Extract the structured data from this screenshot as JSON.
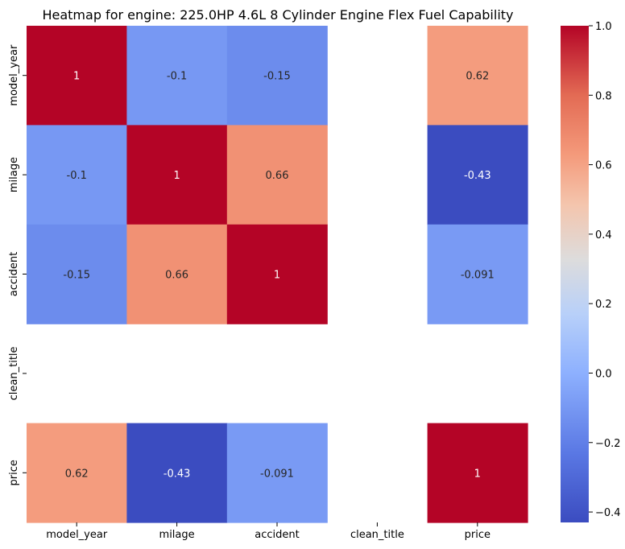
{
  "chart_data": {
    "type": "heatmap",
    "title": "Heatmap for engine: 225.0HP 4.6L 8 Cylinder Engine Flex Fuel Capability",
    "x_labels": [
      "model_year",
      "milage",
      "accident",
      "clean_title",
      "price"
    ],
    "y_labels": [
      "model_year",
      "milage",
      "accident",
      "clean_title",
      "price"
    ],
    "values": [
      [
        1,
        -0.1,
        -0.15,
        null,
        0.62
      ],
      [
        -0.1,
        1,
        0.66,
        null,
        -0.43
      ],
      [
        -0.15,
        0.66,
        1,
        null,
        -0.091
      ],
      [
        null,
        null,
        null,
        null,
        null
      ],
      [
        0.62,
        -0.43,
        -0.091,
        null,
        1
      ]
    ],
    "annotations": [
      [
        "1",
        "-0.1",
        "-0.15",
        "",
        "0.62"
      ],
      [
        "-0.1",
        "1",
        "0.66",
        "",
        "-0.43"
      ],
      [
        "-0.15",
        "0.66",
        "1",
        "",
        "-0.091"
      ],
      [
        "",
        "",
        "",
        "",
        ""
      ],
      [
        "0.62",
        "-0.43",
        "-0.091",
        "",
        "1"
      ]
    ],
    "colormap": "coolwarm",
    "vmin": -0.43,
    "vmax": 1.0,
    "colorbar_ticks": [
      "1.0",
      "0.8",
      "0.6",
      "0.4",
      "0.2",
      "0.0",
      "−0.2",
      "−0.4"
    ],
    "colorbar_tick_values": [
      1.0,
      0.8,
      0.6,
      0.4,
      0.2,
      0.0,
      -0.2,
      -0.4
    ]
  }
}
